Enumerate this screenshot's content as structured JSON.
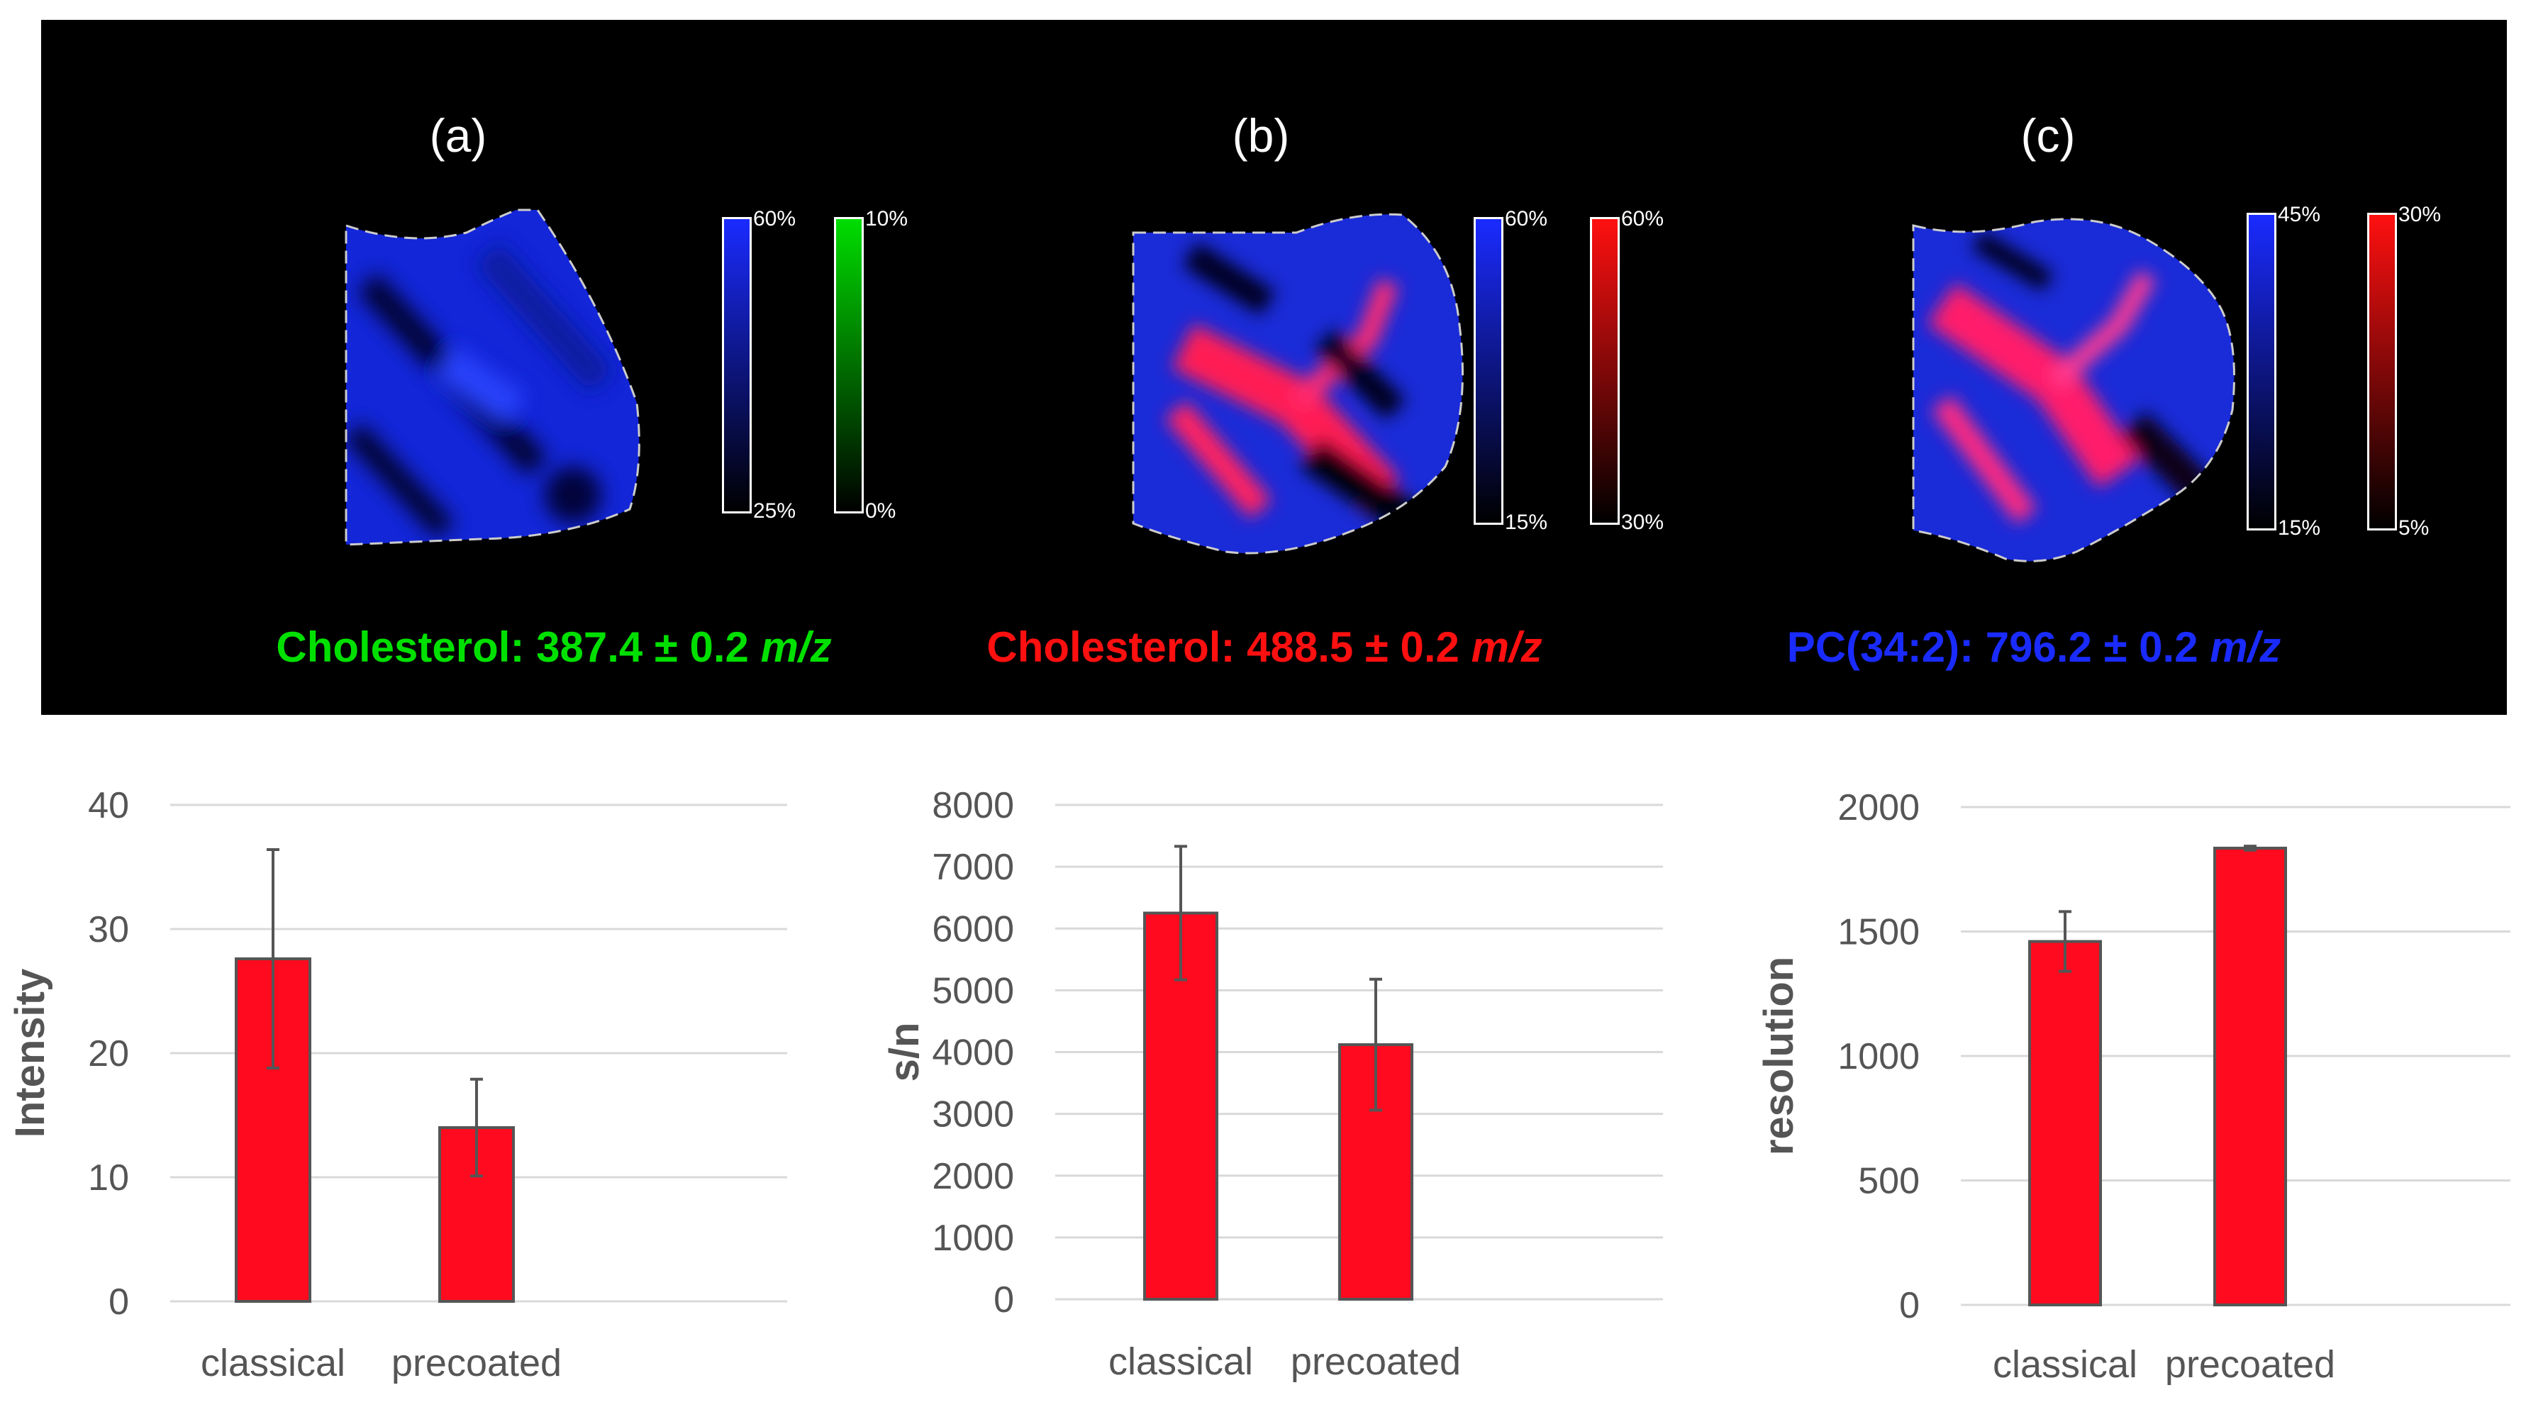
{
  "figure": {
    "panels": [
      {
        "letter": "(a)",
        "caption": {
          "prefix": "Cholesterol: 387.4 ± 0.2 ",
          "unit": "m/z",
          "color": "#00e000"
        },
        "scales": [
          {
            "color": "#1a2bff",
            "max": "60%",
            "min": "25%"
          },
          {
            "color": "#00dd00",
            "max": "10%",
            "min": "0%"
          }
        ]
      },
      {
        "letter": "(b)",
        "caption": {
          "prefix": "Cholesterol: 488.5 ± 0.2 ",
          "unit": "m/z",
          "color": "#ff1010"
        },
        "scales": [
          {
            "color": "#1a2bff",
            "max": "60%",
            "min": "15%"
          },
          {
            "color": "#ff1010",
            "max": "60%",
            "min": "30%"
          }
        ]
      },
      {
        "letter": "(c)",
        "caption": {
          "prefix": "PC(34:2): 796.2 ± 0.2 ",
          "unit": "m/z",
          "color": "#1a2bff"
        },
        "scales": [
          {
            "color": "#1a2bff",
            "max": "45%",
            "min": "15%"
          },
          {
            "color": "#ff1010",
            "max": "30%",
            "min": "5%"
          }
        ]
      }
    ]
  },
  "chart_data": [
    {
      "type": "bar",
      "categories": [
        "classical",
        "precoated"
      ],
      "values": [
        27.6,
        14.0
      ],
      "errors": [
        8.8,
        3.9
      ],
      "ylabel": "Intensity",
      "ylim": [
        0,
        40
      ],
      "yticks": [
        "0",
        "10",
        "20",
        "30",
        "40"
      ],
      "bar_color": "#ff0a1e"
    },
    {
      "type": "bar",
      "categories": [
        "classical",
        "precoated"
      ],
      "values": [
        6250,
        4120
      ],
      "errors": [
        1080,
        1060
      ],
      "ylabel": "s/n",
      "ylim": [
        0,
        8000
      ],
      "yticks": [
        "0",
        "1000",
        "2000",
        "3000",
        "4000",
        "5000",
        "6000",
        "7000",
        "8000"
      ],
      "bar_color": "#ff0a1e"
    },
    {
      "type": "bar",
      "categories": [
        "classical",
        "precoated"
      ],
      "values": [
        1460,
        1835
      ],
      "errors": [
        120,
        8
      ],
      "ylabel": "resolution",
      "ylim": [
        0,
        2000
      ],
      "yticks": [
        "0",
        "500",
        "1000",
        "1500",
        "2000"
      ],
      "bar_color": "#ff0a1e"
    }
  ]
}
